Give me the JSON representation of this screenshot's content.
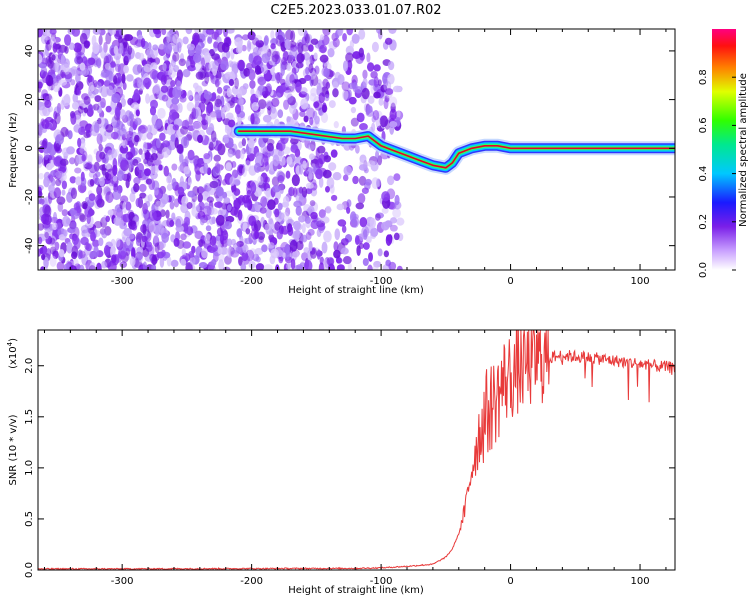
{
  "title": "C2E5.2023.033.01.07.R02",
  "chart_data": [
    {
      "type": "heatmap",
      "xlabel": "Height of straight line (km)",
      "ylabel": "Frequency (Hz)",
      "xlim": [
        -365,
        127
      ],
      "ylim": [
        -50,
        49
      ],
      "xticks": [
        -300,
        -200,
        -100,
        0,
        100
      ],
      "yticks": [
        -40,
        -20,
        0,
        20,
        40
      ],
      "ridge": {
        "x": [
          -210,
          -200,
          -185,
          -170,
          -130,
          -120,
          -110,
          -100,
          -90,
          -80,
          -70,
          -60,
          -50,
          -45,
          -40,
          -30,
          -20,
          -10,
          0,
          20,
          60,
          100,
          127
        ],
        "y": [
          7,
          7,
          7,
          7,
          4,
          4,
          5,
          1,
          -1,
          -3,
          -5,
          -7,
          -8,
          -6,
          -2,
          0,
          1,
          1,
          0,
          0,
          0,
          0,
          0
        ]
      },
      "noise_region_x": [
        -365,
        -85
      ],
      "colorbar": {
        "label": "Normalized spectral amplitude",
        "range": [
          0.0,
          1.0
        ],
        "ticks": [
          0.0,
          0.2,
          0.4,
          0.6,
          0.8
        ],
        "tick_labels": [
          "0.0",
          "0.2",
          "0.4",
          "0.6",
          "0.8"
        ]
      },
      "colors": {
        "noise": "#7a1fe8",
        "ridge_core": "#e8002a"
      }
    },
    {
      "type": "line",
      "xlabel": "Height of straight line (km)",
      "ylabel": "SNR (10 * v/v)",
      "scale_label": "(x10",
      "scale_exp": "4",
      "scale_close": ")",
      "xlim": [
        -365,
        127
      ],
      "ylim": [
        0,
        2.35
      ],
      "xticks": [
        -300,
        -200,
        -100,
        0,
        100
      ],
      "yticks": [
        0.0,
        0.5,
        1.0,
        1.5,
        2.0
      ],
      "ytick_labels": [
        "0.0",
        "0.5",
        "1.0",
        "1.5",
        "2.0"
      ],
      "series": [
        {
          "x": [
            -365,
            -300,
            -200,
            -120,
            -100,
            -80,
            -60,
            -50,
            -45,
            -40,
            -35,
            -30,
            -25,
            -20,
            -15,
            -10,
            -5,
            0,
            5,
            10,
            20,
            30,
            40,
            60,
            80,
            100,
            110,
            127
          ],
          "y": [
            0.005,
            0.005,
            0.008,
            0.01,
            0.015,
            0.03,
            0.05,
            0.12,
            0.2,
            0.35,
            0.6,
            1.0,
            1.3,
            1.5,
            1.6,
            1.7,
            1.85,
            1.9,
            1.95,
            2.0,
            2.05,
            2.08,
            2.1,
            2.08,
            2.05,
            2.02,
            2.0,
            1.98
          ]
        }
      ],
      "colors": {
        "line": "#e83a3a"
      }
    }
  ]
}
